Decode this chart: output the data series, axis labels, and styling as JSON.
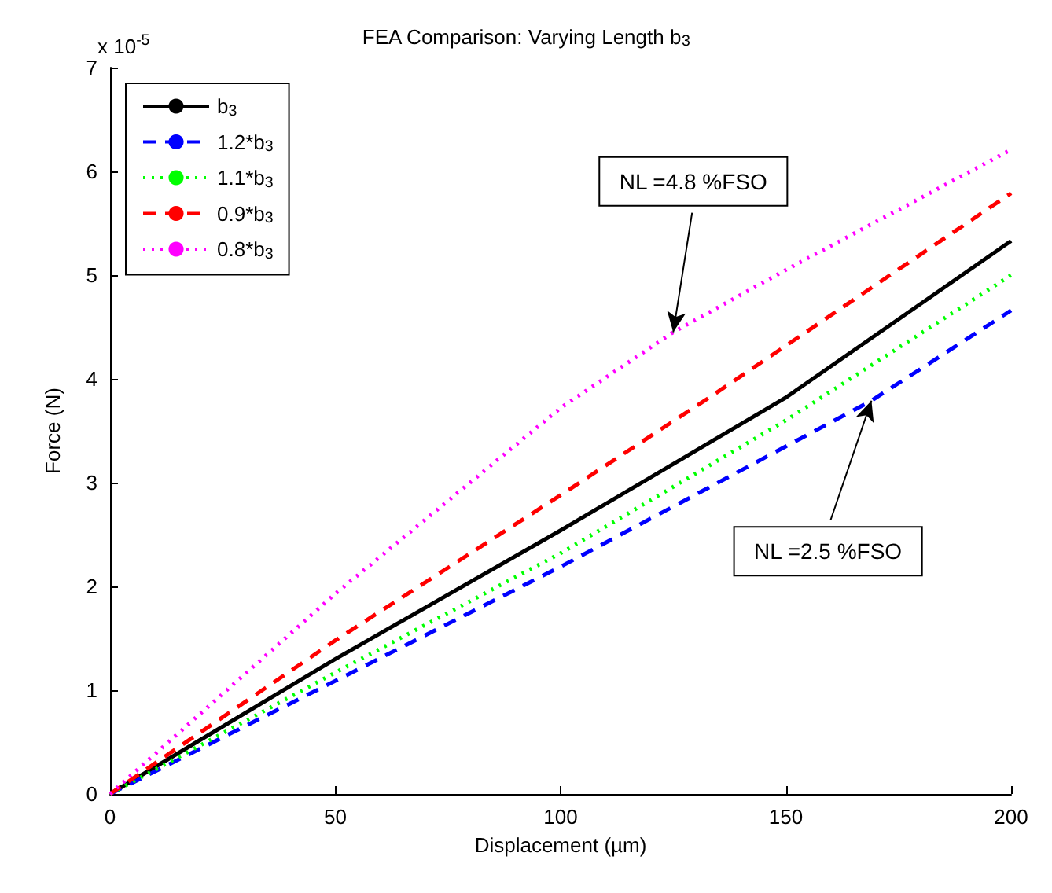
{
  "chart_data": {
    "type": "line",
    "title": "FEA Comparison: Varying Length b$_{3}$",
    "xlabel": "Displacement (µm)",
    "ylabel": "Force (N)",
    "xlim": [
      0,
      200
    ],
    "xticks": [
      0,
      50,
      100,
      150,
      200
    ],
    "ylim": [
      0,
      7
    ],
    "yticks": [
      0,
      1,
      2,
      3,
      4,
      5,
      6,
      7
    ],
    "grid": false,
    "legend": "top left",
    "marker": "none",
    "annotations": [
      "x 10$^{-5}$",
      {
        "text": "NL =4.8 %FSO",
        "x": 125,
        "y": 4.45
      },
      {
        "text": "NL =2.5 %FSO",
        "x": 169,
        "y": 3.79
      }
    ],
    "series": [
      {
        "name": "b$_{3}$",
        "color": "#000000",
        "line_style": "solid",
        "x": [
          0,
          50,
          100,
          150,
          200
        ],
        "values": [
          0,
          1.3,
          2.54,
          3.82,
          5.33
        ]
      },
      {
        "name": "1.2*b$_{3}$",
        "color": "#0000ff",
        "line_style": "dashed",
        "x": [
          0,
          50,
          100,
          169,
          200
        ],
        "values": [
          0,
          1.09,
          2.19,
          3.79,
          4.66
        ]
      },
      {
        "name": "1.1*b$_{3}$",
        "color": "#00ff00",
        "line_style": "dotted",
        "x": [
          0,
          50,
          100,
          150,
          200
        ],
        "values": [
          0,
          1.17,
          2.32,
          3.6,
          5.0
        ]
      },
      {
        "name": "0.9*b$_{3}$",
        "color": "#ff0000",
        "line_style": "dashed",
        "x": [
          0,
          50,
          100,
          133,
          200
        ],
        "values": [
          0,
          1.48,
          2.88,
          3.82,
          5.79
        ]
      },
      {
        "name": "0.8*b$_{3}$",
        "color": "#ff00ff",
        "line_style": "dotted",
        "x": [
          0,
          50,
          100,
          125,
          150,
          200
        ],
        "values": [
          0,
          1.93,
          3.72,
          4.45,
          5.05,
          6.21
        ]
      }
    ]
  }
}
